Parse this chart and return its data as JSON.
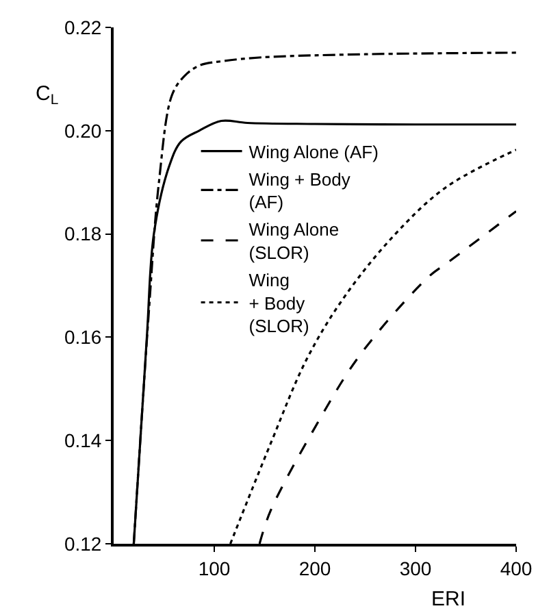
{
  "chart_data": {
    "type": "line",
    "xlabel": "ERI",
    "ylabel": "C$_{L}$",
    "xlim": [
      0,
      400
    ],
    "xticks": [
      100,
      200,
      300,
      400
    ],
    "ylim": [
      0.12,
      0.22
    ],
    "yticks": [
      0.12,
      0.14,
      0.16,
      0.18,
      {
        "value": 0.2,
        "label": "0.20"
      },
      0.22
    ],
    "legend": "left",
    "marker": "none",
    "series": [
      {
        "name": "Wing Alone (AF)",
        "color": "#000000",
        "line_style": "solid",
        "x": [
          20,
          33,
          40,
          55,
          67,
          85,
          107,
          133,
          200,
          300,
          400
        ],
        "values": [
          0.12,
          0.16,
          0.18,
          0.193,
          0.1979,
          0.2,
          0.2019,
          0.2015,
          0.2013,
          0.2012,
          0.2012
        ]
      },
      {
        "name": "Wing + Body\n(AF)",
        "color": "#000000",
        "line_style": "dashdot",
        "x": [
          20,
          35,
          45,
          58,
          70,
          85,
          110,
          147,
          250,
          400
        ],
        "values": [
          0.12,
          0.165,
          0.19,
          0.2069,
          0.2105,
          0.2126,
          0.2135,
          0.2142,
          0.2148,
          0.2151
        ]
      },
      {
        "name": "Wing Alone\n(SLOR)",
        "color": "#000000",
        "line_style": "dashed",
        "x": [
          145,
          156,
          200,
          245,
          313,
          333,
          400
        ],
        "values": [
          0.12,
          0.1264,
          0.1425,
          0.1566,
          0.1717,
          0.1746,
          0.1844
        ]
      },
      {
        "name": "Wing\n+ Body\n(SLOR)",
        "color": "#000000",
        "line_style": "dotted",
        "x": [
          116,
          156,
          192,
          230,
          280,
          330,
          400
        ],
        "values": [
          0.12,
          0.1394,
          0.1558,
          0.168,
          0.18,
          0.189,
          0.1963
        ]
      }
    ]
  }
}
